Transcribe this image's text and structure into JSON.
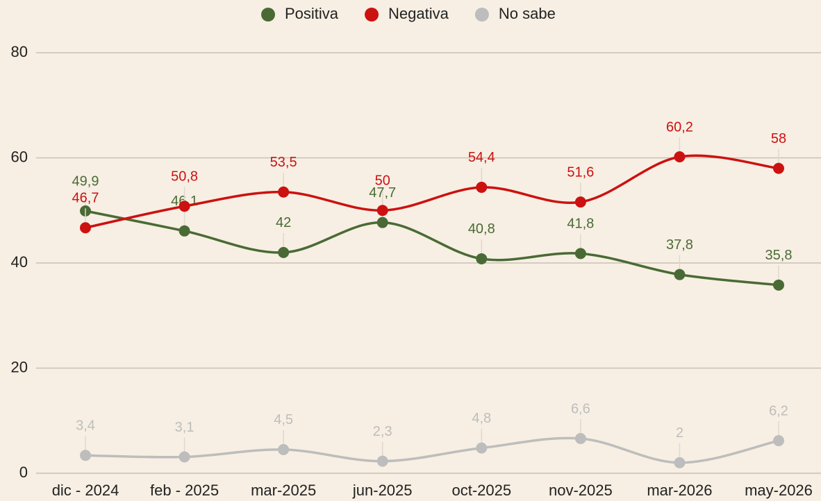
{
  "chart_data": {
    "type": "line",
    "categories": [
      "dic - 2024",
      "feb - 2025",
      "mar-2025",
      "jun-2025",
      "oct-2025",
      "nov-2025",
      "mar-2026",
      "may-2026"
    ],
    "series": [
      {
        "name": "Positiva",
        "color": "#4a6a35",
        "values": [
          49.9,
          46.1,
          42,
          47.7,
          40.8,
          41.8,
          37.8,
          35.8
        ],
        "value_labels": [
          "49,9",
          "46,1",
          "42",
          "47,7",
          "40,8",
          "41,8",
          "37,8",
          "35,8"
        ]
      },
      {
        "name": "Negativa",
        "color": "#cc1111",
        "values": [
          46.7,
          50.8,
          53.5,
          50,
          54.4,
          51.6,
          60.2,
          58
        ],
        "value_labels": [
          "46,7",
          "50,8",
          "53,5",
          "50",
          "54,4",
          "51,6",
          "60,2",
          "58"
        ]
      },
      {
        "name": "No sabe",
        "color": "#bdbdbd",
        "values": [
          3.4,
          3.1,
          4.5,
          2.3,
          4.8,
          6.6,
          2,
          6.2
        ],
        "value_labels": [
          "3,4",
          "3,1",
          "4,5",
          "2,3",
          "4,8",
          "6,6",
          "2",
          "6,2"
        ]
      }
    ],
    "ylim": [
      0,
      80
    ],
    "yticks": [
      0,
      20,
      40,
      60,
      80
    ],
    "grid": true,
    "legend": "top"
  }
}
